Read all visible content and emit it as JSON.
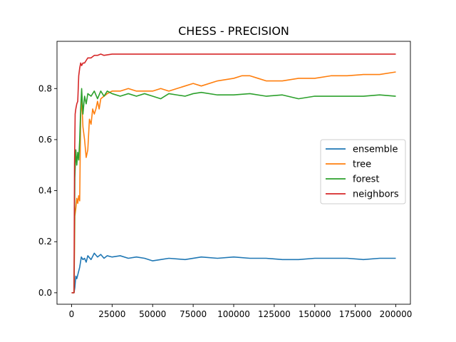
{
  "chart_data": {
    "type": "line",
    "title": "CHESS - PRECISION",
    "xlabel": "",
    "ylabel": "",
    "xlim": [
      -9000,
      209000
    ],
    "ylim": [
      -0.045,
      0.985
    ],
    "xticks": [
      0,
      25000,
      50000,
      75000,
      100000,
      125000,
      150000,
      175000,
      200000
    ],
    "xtick_labels": [
      "0",
      "25000",
      "50000",
      "75000",
      "100000",
      "125000",
      "150000",
      "175000",
      "200000"
    ],
    "yticks": [
      0.0,
      0.2,
      0.4,
      0.6,
      0.8
    ],
    "ytick_labels": [
      "0.0",
      "0.2",
      "0.4",
      "0.6",
      "0.8"
    ],
    "grid": false,
    "legend_position": "center-right",
    "series": [
      {
        "name": "ensemble",
        "color": "#1f77b4",
        "x": [
          0,
          800,
          1500,
          2000,
          2600,
          3200,
          4000,
          5000,
          6000,
          7000,
          8000,
          9000,
          10000,
          12000,
          14000,
          16000,
          18000,
          20000,
          22000,
          25000,
          30000,
          35000,
          40000,
          45000,
          50000,
          55000,
          60000,
          70000,
          80000,
          90000,
          100000,
          110000,
          120000,
          130000,
          140000,
          150000,
          160000,
          170000,
          180000,
          190000,
          200000
        ],
        "y": [
          0.0,
          0.0,
          0.0,
          0.02,
          0.065,
          0.055,
          0.075,
          0.1,
          0.14,
          0.13,
          0.135,
          0.12,
          0.145,
          0.13,
          0.155,
          0.14,
          0.15,
          0.135,
          0.145,
          0.14,
          0.145,
          0.135,
          0.14,
          0.135,
          0.125,
          0.13,
          0.135,
          0.13,
          0.14,
          0.135,
          0.14,
          0.135,
          0.135,
          0.13,
          0.13,
          0.135,
          0.135,
          0.135,
          0.13,
          0.135,
          0.135
        ]
      },
      {
        "name": "tree",
        "color": "#ff7f0e",
        "x": [
          0,
          800,
          1500,
          2000,
          2600,
          3200,
          3800,
          4400,
          5000,
          5600,
          6200,
          7000,
          8000,
          9000,
          10000,
          11000,
          12000,
          13000,
          14000,
          15000,
          16000,
          17000,
          18000,
          20000,
          22000,
          25000,
          30000,
          35000,
          40000,
          45000,
          50000,
          55000,
          60000,
          65000,
          70000,
          75000,
          80000,
          90000,
          100000,
          105000,
          110000,
          115000,
          120000,
          130000,
          140000,
          150000,
          160000,
          170000,
          180000,
          190000,
          200000
        ],
        "y": [
          0.0,
          0.0,
          0.0,
          0.3,
          0.33,
          0.37,
          0.35,
          0.38,
          0.36,
          0.7,
          0.76,
          0.65,
          0.6,
          0.53,
          0.56,
          0.68,
          0.66,
          0.72,
          0.7,
          0.72,
          0.75,
          0.72,
          0.76,
          0.77,
          0.78,
          0.79,
          0.79,
          0.8,
          0.79,
          0.79,
          0.79,
          0.8,
          0.79,
          0.8,
          0.81,
          0.82,
          0.81,
          0.83,
          0.84,
          0.85,
          0.85,
          0.84,
          0.83,
          0.83,
          0.84,
          0.84,
          0.85,
          0.85,
          0.855,
          0.855,
          0.865
        ]
      },
      {
        "name": "forest",
        "color": "#2ca02c",
        "x": [
          0,
          800,
          1500,
          2000,
          2600,
          3200,
          3800,
          4400,
          5000,
          5600,
          6200,
          7000,
          8000,
          9000,
          10000,
          12000,
          14000,
          16000,
          18000,
          20000,
          22000,
          25000,
          30000,
          35000,
          40000,
          45000,
          50000,
          55000,
          60000,
          65000,
          70000,
          75000,
          80000,
          90000,
          100000,
          110000,
          120000,
          130000,
          140000,
          150000,
          160000,
          170000,
          180000,
          190000,
          200000
        ],
        "y": [
          0.0,
          0.0,
          0.0,
          0.45,
          0.56,
          0.5,
          0.55,
          0.52,
          0.6,
          0.72,
          0.8,
          0.7,
          0.77,
          0.74,
          0.78,
          0.77,
          0.79,
          0.76,
          0.79,
          0.77,
          0.79,
          0.78,
          0.77,
          0.78,
          0.77,
          0.78,
          0.77,
          0.76,
          0.78,
          0.775,
          0.77,
          0.78,
          0.785,
          0.775,
          0.775,
          0.78,
          0.77,
          0.775,
          0.76,
          0.77,
          0.77,
          0.77,
          0.77,
          0.775,
          0.77
        ]
      },
      {
        "name": "neighbors",
        "color": "#d62728",
        "x": [
          0,
          800,
          1500,
          1800,
          2200,
          2600,
          3200,
          3800,
          4400,
          5000,
          5600,
          6200,
          7000,
          8000,
          9000,
          10000,
          12000,
          14000,
          16000,
          18000,
          20000,
          25000,
          30000,
          40000,
          50000,
          60000,
          80000,
          100000,
          120000,
          140000,
          160000,
          180000,
          200000
        ],
        "y": [
          0.0,
          0.0,
          0.0,
          0.5,
          0.7,
          0.72,
          0.74,
          0.75,
          0.85,
          0.88,
          0.9,
          0.89,
          0.9,
          0.9,
          0.91,
          0.92,
          0.92,
          0.93,
          0.93,
          0.935,
          0.93,
          0.935,
          0.935,
          0.935,
          0.935,
          0.935,
          0.935,
          0.935,
          0.935,
          0.935,
          0.935,
          0.935,
          0.935
        ]
      }
    ]
  }
}
